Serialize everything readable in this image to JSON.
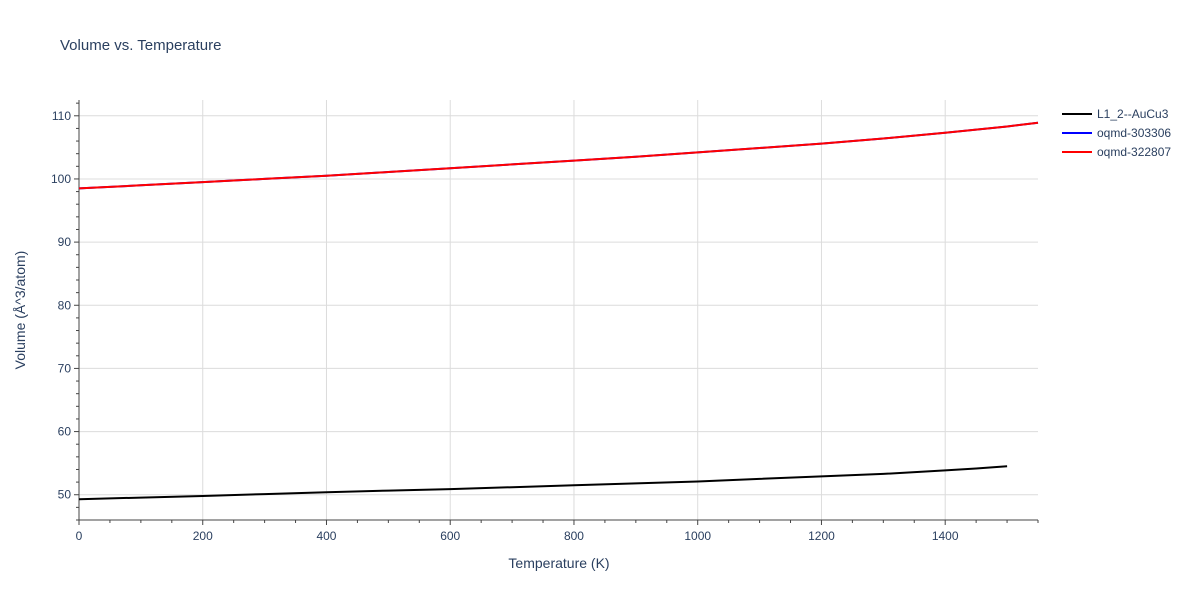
{
  "chart_data": {
    "type": "line",
    "title": "Volume vs. Temperature",
    "xlabel": "Temperature (K)",
    "ylabel": "Volume (Å^3/atom)",
    "xlim": [
      0,
      1550
    ],
    "ylim": [
      46,
      112.5
    ],
    "xticks": [
      0,
      200,
      400,
      600,
      800,
      1000,
      1200,
      1400
    ],
    "yticks": [
      50,
      60,
      70,
      80,
      90,
      100,
      110
    ],
    "grid": true,
    "legend_position": "top-right",
    "series": [
      {
        "name": "L1_2--AuCu3",
        "color": "#000000",
        "x": [
          0,
          100,
          200,
          300,
          400,
          500,
          600,
          700,
          800,
          900,
          1000,
          1100,
          1200,
          1300,
          1400,
          1450,
          1500
        ],
        "y": [
          49.3,
          49.55,
          49.8,
          50.1,
          50.4,
          50.65,
          50.9,
          51.2,
          51.5,
          51.8,
          52.1,
          52.5,
          52.9,
          53.3,
          53.85,
          54.15,
          54.5
        ]
      },
      {
        "name": "oqmd-303306",
        "color": "#0000ff",
        "x": [
          0,
          100,
          200,
          300,
          400,
          500,
          600,
          700,
          800,
          900,
          1000,
          1100,
          1200,
          1300,
          1400,
          1500,
          1550
        ],
        "y": [
          98.5,
          99.0,
          99.5,
          100.0,
          100.5,
          101.1,
          101.7,
          102.3,
          102.9,
          103.5,
          104.2,
          104.9,
          105.6,
          106.4,
          107.3,
          108.3,
          108.9
        ]
      },
      {
        "name": "oqmd-322807",
        "color": "#ff0000",
        "x": [
          0,
          100,
          200,
          300,
          400,
          500,
          600,
          700,
          800,
          900,
          1000,
          1100,
          1200,
          1300,
          1400,
          1500,
          1550
        ],
        "y": [
          98.5,
          99.0,
          99.5,
          100.0,
          100.5,
          101.1,
          101.7,
          102.3,
          102.9,
          103.5,
          104.2,
          104.9,
          105.6,
          106.4,
          107.3,
          108.3,
          108.9
        ]
      }
    ]
  }
}
